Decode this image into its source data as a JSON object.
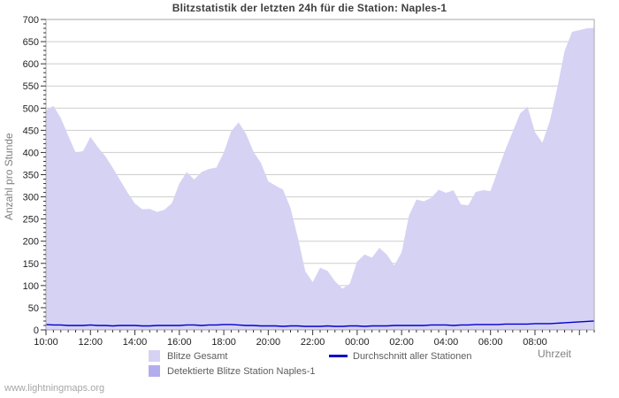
{
  "title": "Blitzstatistik der letzten 24h für die Station: Naples-1",
  "footer": "www.lightningmaps.org",
  "axes": {
    "x_label": "Uhrzeit",
    "y_label": "Anzahl pro Stunde"
  },
  "legend": {
    "total_label": "Blitze Gesamt",
    "detected_label": "Detektierte Blitze Station Naples-1",
    "average_label": "Durchschnitt aller Stationen"
  },
  "colors": {
    "area_total": "#d6d2f4",
    "area_detected": "#b2adec",
    "average_line": "#0000cd",
    "gridline": "#cdcdcd",
    "plot_border": "#a9a9a9",
    "tick": "#333333",
    "tick_label": "#222222"
  },
  "chart_data": {
    "type": "area",
    "title": "Blitzstatistik der letzten 24h für die Station: Naples-1",
    "xlabel": "Uhrzeit",
    "ylabel": "Anzahl pro Stunde",
    "ylim": [
      0,
      700
    ],
    "y_tick_major_step": 50,
    "y_tick_minor_step": 10,
    "grid": "horizontal-only",
    "legend_position": "bottom",
    "x_time_range": {
      "start": "10:00",
      "step_minutes": 20,
      "points": 75,
      "note": "24h40m span, left edge 10:00, right edge ~10:40 next day"
    },
    "x_tick_labels": [
      "10:00",
      "12:00",
      "14:00",
      "16:00",
      "18:00",
      "20:00",
      "22:00",
      "00:00",
      "02:00",
      "04:00",
      "06:00",
      "08:00"
    ],
    "series": [
      {
        "name": "Blitze Gesamt",
        "type": "area",
        "color": "#d6d2f4",
        "values": [
          495,
          505,
          478,
          438,
          400,
          403,
          435,
          412,
          392,
          366,
          338,
          310,
          285,
          272,
          273,
          266,
          271,
          286,
          330,
          356,
          339,
          356,
          363,
          366,
          400,
          448,
          468,
          442,
          402,
          377,
          335,
          325,
          316,
          275,
          208,
          132,
          108,
          140,
          133,
          110,
          93,
          104,
          154,
          170,
          163,
          185,
          170,
          145,
          175,
          258,
          294,
          290,
          298,
          316,
          309,
          315,
          283,
          281,
          311,
          315,
          313,
          360,
          406,
          447,
          488,
          503,
          446,
          422,
          471,
          545,
          629,
          672,
          676,
          680,
          681
        ]
      },
      {
        "name": "Detektierte Blitze Station Naples-1",
        "type": "area",
        "color": "#b2adec",
        "values": [
          0,
          0,
          0,
          0,
          0,
          0,
          0,
          0,
          0,
          0,
          0,
          0,
          0,
          0,
          0,
          0,
          0,
          0,
          0,
          0,
          0,
          0,
          0,
          0,
          0,
          0,
          0,
          0,
          0,
          0,
          0,
          0,
          0,
          0,
          0,
          0,
          0,
          0,
          0,
          0,
          0,
          0,
          0,
          0,
          0,
          0,
          0,
          0,
          0,
          0,
          0,
          0,
          0,
          0,
          0,
          0,
          0,
          0,
          0,
          0,
          0,
          0,
          0,
          0,
          0,
          0,
          0,
          0,
          0,
          0,
          0,
          0,
          0,
          0,
          0
        ]
      },
      {
        "name": "Durchschnitt aller Stationen",
        "type": "line",
        "color": "#0000cd",
        "values": [
          12,
          11,
          11,
          10,
          10,
          10,
          11,
          10,
          10,
          9,
          10,
          10,
          10,
          9,
          9,
          10,
          10,
          10,
          10,
          11,
          11,
          10,
          11,
          11,
          12,
          12,
          11,
          10,
          10,
          9,
          9,
          9,
          8,
          9,
          9,
          8,
          8,
          8,
          9,
          8,
          8,
          9,
          9,
          8,
          9,
          9,
          9,
          10,
          10,
          10,
          10,
          10,
          11,
          11,
          11,
          10,
          11,
          11,
          12,
          12,
          12,
          12,
          13,
          13,
          13,
          13,
          14,
          14,
          14,
          15,
          16,
          17,
          18,
          19,
          20
        ]
      }
    ]
  }
}
